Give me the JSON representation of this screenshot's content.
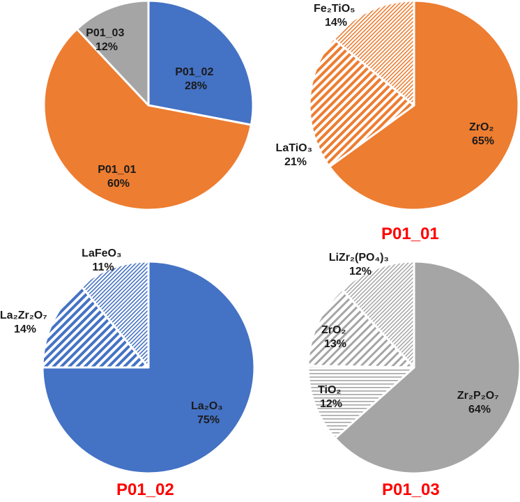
{
  "colors": {
    "blue": "#4472C4",
    "orange": "#ED7D31",
    "gray": "#A5A5A5",
    "caption": "#FF0000"
  },
  "chart_data": [
    {
      "type": "pie",
      "title": "",
      "slices": [
        {
          "name": "P01_02",
          "label": "P01_02",
          "pct": "28%",
          "value": 28,
          "color": "#4472C4",
          "pattern": "solid"
        },
        {
          "name": "P01_01",
          "label": "P01_01",
          "pct": "60%",
          "value": 60,
          "color": "#ED7D31",
          "pattern": "solid"
        },
        {
          "name": "P01_03",
          "label": "P01_03",
          "pct": "12%",
          "value": 12,
          "color": "#A5A5A5",
          "pattern": "solid"
        }
      ]
    },
    {
      "type": "pie",
      "title": "P01_01",
      "slices": [
        {
          "name": "ZrO2",
          "label": "ZrO₂",
          "pct": "65%",
          "value": 65,
          "color": "#ED7D31",
          "pattern": "solid"
        },
        {
          "name": "LaTiO3",
          "label": "LaTiO₃",
          "pct": "21%",
          "value": 21,
          "color": "#ED7D31",
          "pattern": "diag-wide"
        },
        {
          "name": "Fe2TiO5",
          "label": "Fe₂TiO₅",
          "pct": "14%",
          "value": 14,
          "color": "#ED7D31",
          "pattern": "diag-fine"
        }
      ]
    },
    {
      "type": "pie",
      "title": "P01_02",
      "slices": [
        {
          "name": "La2O3",
          "label": "La₂O₃",
          "pct": "75%",
          "value": 75,
          "color": "#4472C4",
          "pattern": "solid"
        },
        {
          "name": "La2Zr2O7",
          "label": "La₂Zr₂O₇",
          "pct": "14%",
          "value": 14,
          "color": "#4472C4",
          "pattern": "diag-wide"
        },
        {
          "name": "LaFeO3",
          "label": "LaFeO₃",
          "pct": "11%",
          "value": 11,
          "color": "#4472C4",
          "pattern": "diag-fine"
        }
      ]
    },
    {
      "type": "pie",
      "title": "P01_03",
      "slices": [
        {
          "name": "Zr2P2O7",
          "label": "Zr₂P₂O₇",
          "pct": "64%",
          "value": 64,
          "color": "#A5A5A5",
          "pattern": "solid"
        },
        {
          "name": "TiO2",
          "label": "TiO₂",
          "pct": "12%",
          "value": 12,
          "color": "#A5A5A5",
          "pattern": "horiz"
        },
        {
          "name": "ZrO2",
          "label": "ZrO₂",
          "pct": "13%",
          "value": 13,
          "color": "#A5A5A5",
          "pattern": "diag-wide"
        },
        {
          "name": "LiZr2PO43",
          "label": "LiZr₂(PO₄)₃",
          "pct": "12%",
          "value": 12,
          "color": "#A5A5A5",
          "pattern": "diag-fine"
        }
      ]
    }
  ]
}
